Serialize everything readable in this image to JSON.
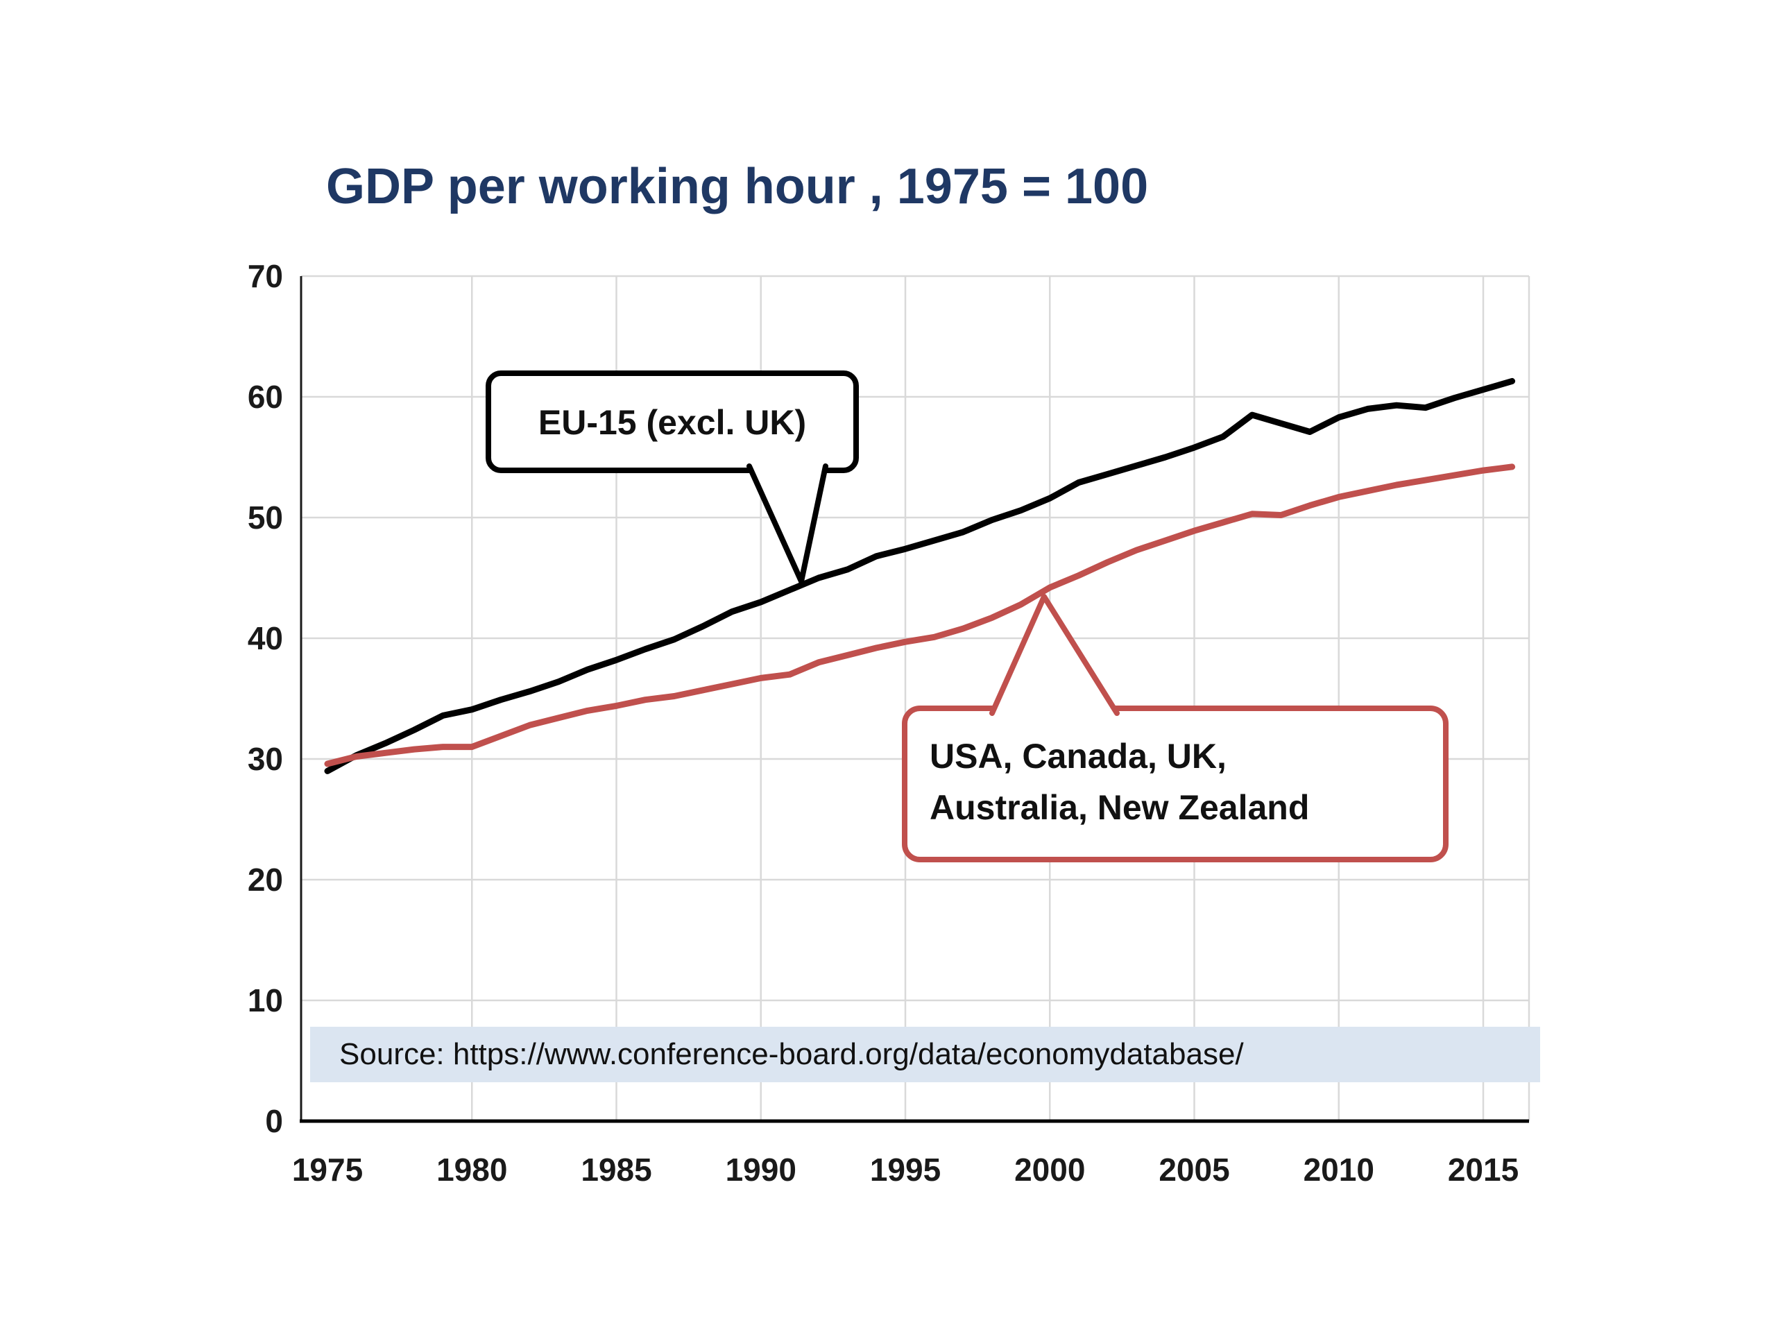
{
  "title": "GDP per working hour , 1975 = 100",
  "source": "Source: https://www.conference-board.org/data/economydatabase/",
  "colors": {
    "title": "#1f3864",
    "eu_line": "#000000",
    "anglo_line": "#c0504d",
    "grid": "#d9d9d9",
    "axis": "#1a1a1a",
    "source_bg": "#dbe5f1"
  },
  "callouts": [
    {
      "label_lines": [
        "EU-15 (excl. UK)"
      ],
      "color": "#000000"
    },
    {
      "label_lines": [
        "USA, Canada, UK,",
        "Australia, New Zealand"
      ],
      "color": "#c0504d"
    }
  ],
  "chart_data": {
    "type": "line",
    "title": "GDP per working hour , 1975 = 100",
    "xlabel": "",
    "ylabel": "",
    "ylim": [
      0,
      70
    ],
    "xlim": [
      1974,
      2017
    ],
    "grid": true,
    "legend": "callout labels on chart",
    "y_ticks": [
      0,
      10,
      20,
      30,
      40,
      50,
      60,
      70
    ],
    "x_ticks": [
      1975,
      1980,
      1985,
      1990,
      1995,
      2000,
      2005,
      2010,
      2015
    ],
    "x": [
      1975,
      1976,
      1977,
      1978,
      1979,
      1980,
      1981,
      1982,
      1983,
      1984,
      1985,
      1986,
      1987,
      1988,
      1989,
      1990,
      1991,
      1992,
      1993,
      1994,
      1995,
      1996,
      1997,
      1998,
      1999,
      2000,
      2001,
      2002,
      2003,
      2004,
      2005,
      2006,
      2007,
      2008,
      2009,
      2010,
      2011,
      2012,
      2013,
      2014,
      2015,
      2016
    ],
    "series": [
      {
        "name": "EU-15 (excl. UK)",
        "color": "#000000",
        "values": [
          29.0,
          30.3,
          31.3,
          32.4,
          33.6,
          34.1,
          34.9,
          35.6,
          36.4,
          37.4,
          38.2,
          39.1,
          39.9,
          41.0,
          42.2,
          43.0,
          44.0,
          45.0,
          45.7,
          46.8,
          47.4,
          48.1,
          48.8,
          49.8,
          50.6,
          51.6,
          52.9,
          53.6,
          54.3,
          55.0,
          55.8,
          56.7,
          58.5,
          57.8,
          57.1,
          58.3,
          59.0,
          59.3,
          59.1,
          59.9,
          60.6,
          61.3
        ]
      },
      {
        "name": "USA, Canada, UK, Australia, New Zealand",
        "color": "#c0504d",
        "values": [
          29.6,
          30.2,
          30.5,
          30.8,
          31.0,
          31.0,
          31.9,
          32.8,
          33.4,
          34.0,
          34.4,
          34.9,
          35.2,
          35.7,
          36.2,
          36.7,
          37.0,
          38.0,
          38.6,
          39.2,
          39.7,
          40.1,
          40.8,
          41.7,
          42.8,
          44.2,
          45.2,
          46.3,
          47.3,
          48.1,
          48.9,
          49.6,
          50.3,
          50.2,
          51.0,
          51.7,
          52.2,
          52.7,
          53.1,
          53.5,
          53.9,
          54.2
        ]
      }
    ]
  }
}
